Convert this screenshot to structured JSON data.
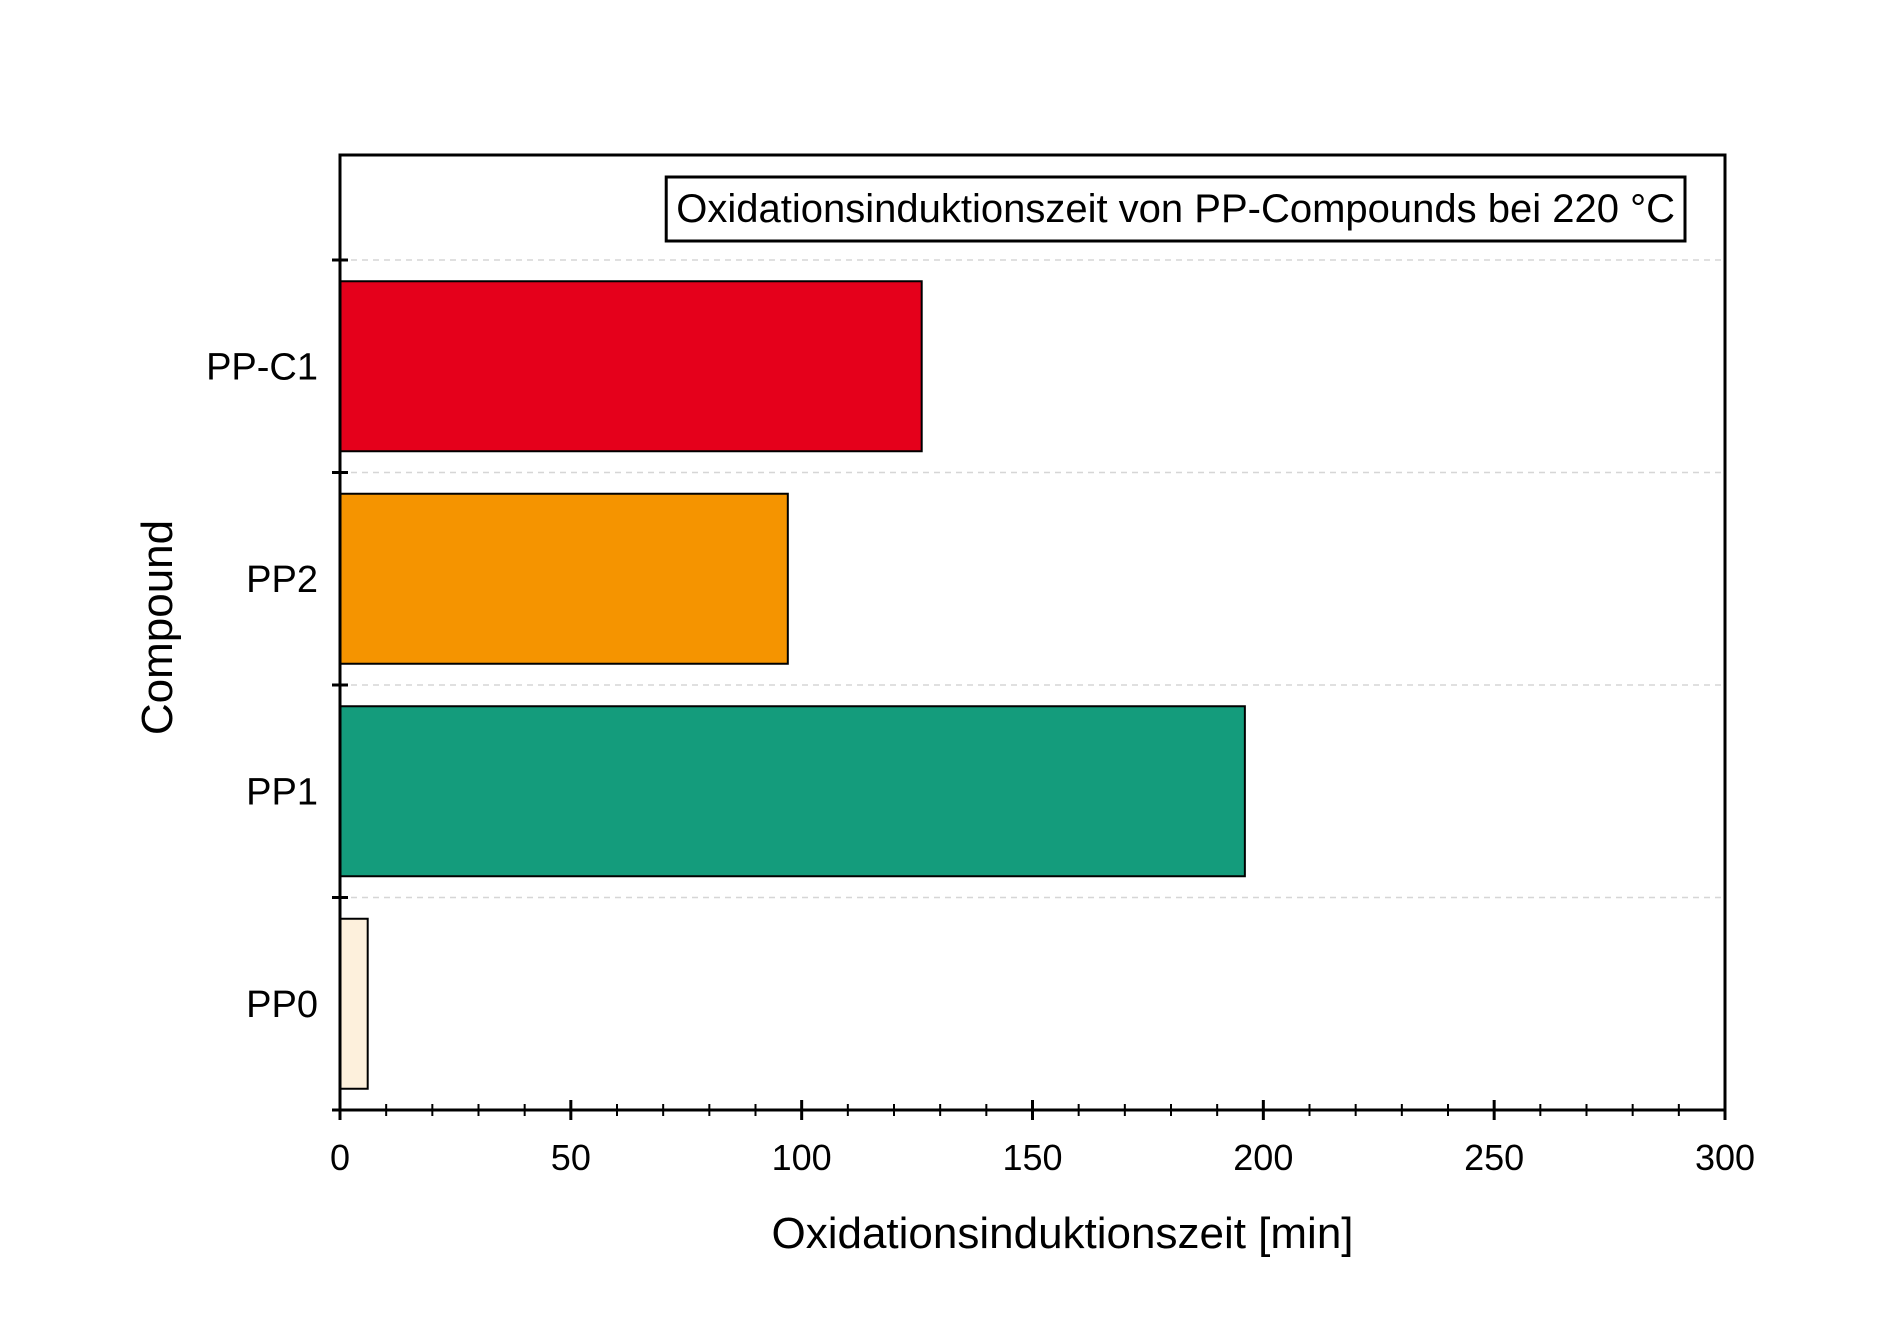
{
  "chart_data": {
    "type": "bar",
    "orientation": "horizontal",
    "title": "Oxidationsinduktionszeit von PP-Compounds bei 220 °C",
    "xlabel": "Oxidationsinduktionszeit [min]",
    "ylabel": "Compound",
    "xlim": [
      0,
      300
    ],
    "xticks": [
      0,
      50,
      100,
      150,
      200,
      250,
      300
    ],
    "x_minor_step": 10,
    "categories": [
      "PP0",
      "PP1",
      "PP2",
      "PP-C1"
    ],
    "values": [
      6,
      196,
      97,
      126
    ],
    "colors": [
      "#FDF0DC",
      "#149C7C",
      "#F59400",
      "#E5001B"
    ],
    "grid": "horizontal dashed",
    "title_placement": "boxed, top-right inside plot"
  }
}
